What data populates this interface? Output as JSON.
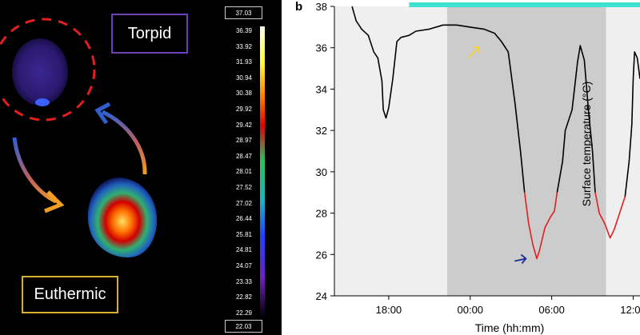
{
  "panel_a": {
    "torpid_label": "Torpid",
    "euthermic_label": "Euthermic",
    "scale_max": "37.03",
    "scale_min": "22.03",
    "scale_ticks": [
      "36.39",
      "33.92",
      "31.93",
      "30.94",
      "30.38",
      "29.92",
      "29.42",
      "28.97",
      "28.47",
      "28.01",
      "27.52",
      "27.02",
      "26.44",
      "25.81",
      "24.81",
      "24.07",
      "23.33",
      "22.82",
      "22.29"
    ],
    "colors": {
      "torpid_border": "#6b3fb6",
      "euthermic_border": "#d8ad30",
      "torpid_circle": "#e02020"
    }
  },
  "panel_b": {
    "panel_label": "b"
  },
  "chart_data": {
    "type": "line",
    "title": "",
    "xlabel": "Time (hh:mm)",
    "ylabel": "Surface temperature (°C)",
    "xlim": [
      14.0,
      36.5
    ],
    "ylim": [
      24,
      38
    ],
    "x_ticks": [
      18,
      24,
      30,
      36
    ],
    "x_tick_labels": [
      "18:00",
      "00:00",
      "06:00",
      "12:00"
    ],
    "y_ticks": [
      24,
      26,
      28,
      30,
      32,
      34,
      36,
      38
    ],
    "y_tick_labels": [
      "24",
      "26",
      "28",
      "30",
      "32",
      "34",
      "36",
      "38"
    ],
    "shaded_regions": [
      {
        "x0": 14.0,
        "x1": 22.3,
        "color": "#efefef"
      },
      {
        "x0": 22.3,
        "x1": 34.0,
        "color": "#cccccc"
      },
      {
        "x0": 34.0,
        "x1": 36.5,
        "color": "#efefef"
      }
    ],
    "top_bar": {
      "x0": 19.5,
      "x1": 36.5,
      "color": "#3ee0d0"
    },
    "series": [
      {
        "color": "#000000",
        "points": [
          [
            15.3,
            38.0
          ],
          [
            15.6,
            37.3
          ],
          [
            16.0,
            36.9
          ],
          [
            16.5,
            36.6
          ],
          [
            16.9,
            35.8
          ],
          [
            17.2,
            35.5
          ],
          [
            17.5,
            34.4
          ],
          [
            17.6,
            33.0
          ],
          [
            17.8,
            32.6
          ],
          [
            18.0,
            33.1
          ],
          [
            18.3,
            34.5
          ],
          [
            18.6,
            36.3
          ],
          [
            18.9,
            36.5
          ],
          [
            19.5,
            36.6
          ],
          [
            20.0,
            36.8
          ],
          [
            21.0,
            36.9
          ],
          [
            22.0,
            37.1
          ],
          [
            23.0,
            37.1
          ],
          [
            24.0,
            37.0
          ],
          [
            25.0,
            36.9
          ],
          [
            25.8,
            36.7
          ],
          [
            26.3,
            36.3
          ],
          [
            26.8,
            35.8
          ],
          [
            27.3,
            33.3
          ],
          [
            27.7,
            31.0
          ],
          [
            28.0,
            29.0
          ]
        ],
        "segment": "a"
      },
      {
        "color": "#e02020",
        "points": [
          [
            28.0,
            29.0
          ],
          [
            28.3,
            27.5
          ],
          [
            28.6,
            26.5
          ],
          [
            28.9,
            25.8
          ],
          [
            29.1,
            26.2
          ],
          [
            29.5,
            27.3
          ],
          [
            29.9,
            27.8
          ],
          [
            30.2,
            28.1
          ],
          [
            30.4,
            29.0
          ]
        ],
        "segment": "b"
      },
      {
        "color": "#000000",
        "points": [
          [
            30.4,
            29.0
          ],
          [
            30.8,
            30.5
          ],
          [
            31.0,
            32.0
          ],
          [
            31.5,
            33.0
          ],
          [
            31.9,
            35.3
          ],
          [
            32.1,
            36.1
          ],
          [
            32.4,
            35.4
          ],
          [
            32.7,
            33.0
          ],
          [
            33.0,
            31.0
          ],
          [
            33.2,
            29.0
          ]
        ],
        "segment": "c"
      },
      {
        "color": "#e02020",
        "points": [
          [
            33.2,
            29.0
          ],
          [
            33.5,
            28.0
          ],
          [
            33.9,
            27.5
          ],
          [
            34.3,
            26.8
          ],
          [
            34.6,
            27.2
          ],
          [
            35.0,
            28.0
          ],
          [
            35.4,
            28.8
          ]
        ],
        "segment": "d"
      },
      {
        "color": "#000000",
        "points": [
          [
            35.4,
            28.8
          ],
          [
            35.7,
            30.5
          ],
          [
            35.9,
            32.3
          ],
          [
            36.0,
            34.5
          ],
          [
            36.1,
            35.8
          ],
          [
            36.3,
            35.5
          ],
          [
            36.5,
            34.5
          ]
        ],
        "segment": "e"
      }
    ],
    "arrows": [
      {
        "x": 24.3,
        "y": 35.8,
        "color": "#f0d040",
        "direction": "up-right"
      },
      {
        "x": 28.1,
        "y": 25.8,
        "color": "#1a2a9a",
        "direction": "right"
      }
    ]
  }
}
